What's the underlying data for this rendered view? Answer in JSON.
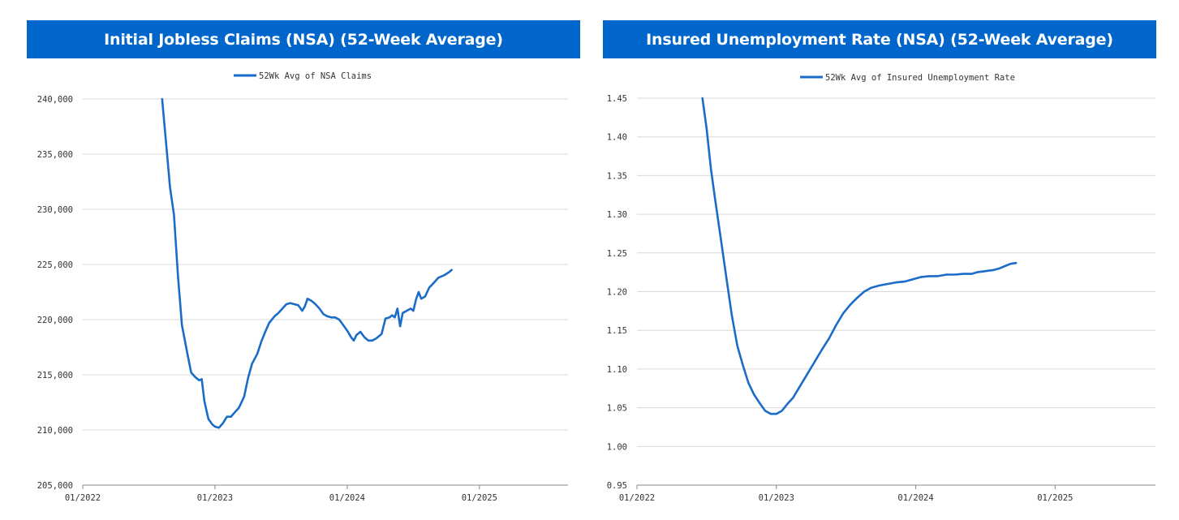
{
  "charts": [
    {
      "title": "Initial Jobless Claims (NSA) (52-Week Average)"
    },
    {
      "title": "Insured Unemployment Rate (NSA) (52-Week Average)"
    }
  ],
  "colors": {
    "banner": "#0066cc",
    "line": "#1a6cc8",
    "grid": "#d9d9d9",
    "axis": "#888888"
  },
  "chart_data": [
    {
      "type": "line",
      "title": "Initial Jobless Claims (NSA) (52-Week Average)",
      "xlabel": "",
      "ylabel": "",
      "legend_position": "top-center",
      "grid": true,
      "x_ticks": [
        "01/2022",
        "01/2023",
        "01/2024",
        "01/2025"
      ],
      "x_tick_values": [
        2022.0,
        2023.0,
        2024.0,
        2025.0
      ],
      "xlim": [
        2022.0,
        2025.67
      ],
      "y_ticks": [
        "205,000",
        "210,000",
        "215,000",
        "220,000",
        "225,000",
        "230,000",
        "235,000",
        "240,000"
      ],
      "y_tick_values": [
        205000,
        210000,
        215000,
        220000,
        225000,
        230000,
        235000,
        240000
      ],
      "ylim": [
        205000,
        240000
      ],
      "series": [
        {
          "name": "52Wk Avg of NSA Claims",
          "color": "#1a6cc8",
          "points": [
            [
              2022.6,
              240000
            ],
            [
              2022.63,
              236000
            ],
            [
              2022.66,
              232000
            ],
            [
              2022.69,
              229500
            ],
            [
              2022.72,
              224000
            ],
            [
              2022.75,
              219500
            ],
            [
              2022.79,
              217000
            ],
            [
              2022.82,
              215200
            ],
            [
              2022.85,
              214800
            ],
            [
              2022.88,
              214500
            ],
            [
              2022.9,
              214600
            ],
            [
              2022.92,
              212600
            ],
            [
              2022.95,
              211000
            ],
            [
              2022.98,
              210500
            ],
            [
              2023.0,
              210300
            ],
            [
              2023.03,
              210200
            ],
            [
              2023.06,
              210600
            ],
            [
              2023.09,
              211200
            ],
            [
              2023.12,
              211200
            ],
            [
              2023.15,
              211600
            ],
            [
              2023.18,
              212000
            ],
            [
              2023.22,
              213000
            ],
            [
              2023.25,
              214700
            ],
            [
              2023.28,
              216000
            ],
            [
              2023.32,
              216900
            ],
            [
              2023.35,
              218000
            ],
            [
              2023.38,
              218900
            ],
            [
              2023.41,
              219700
            ],
            [
              2023.45,
              220300
            ],
            [
              2023.48,
              220600
            ],
            [
              2023.51,
              221000
            ],
            [
              2023.54,
              221400
            ],
            [
              2023.57,
              221500
            ],
            [
              2023.6,
              221400
            ],
            [
              2023.63,
              221300
            ],
            [
              2023.66,
              220800
            ],
            [
              2023.68,
              221200
            ],
            [
              2023.7,
              221900
            ],
            [
              2023.73,
              221700
            ],
            [
              2023.76,
              221400
            ],
            [
              2023.79,
              221000
            ],
            [
              2023.82,
              220500
            ],
            [
              2023.85,
              220300
            ],
            [
              2023.88,
              220200
            ],
            [
              2023.91,
              220200
            ],
            [
              2023.94,
              220000
            ],
            [
              2023.97,
              219500
            ],
            [
              2024.0,
              219000
            ],
            [
              2024.03,
              218400
            ],
            [
              2024.05,
              218100
            ],
            [
              2024.07,
              218600
            ],
            [
              2024.1,
              218900
            ],
            [
              2024.13,
              218400
            ],
            [
              2024.16,
              218100
            ],
            [
              2024.19,
              218100
            ],
            [
              2024.22,
              218300
            ],
            [
              2024.26,
              218700
            ],
            [
              2024.29,
              220100
            ],
            [
              2024.32,
              220200
            ],
            [
              2024.34,
              220400
            ],
            [
              2024.36,
              220200
            ],
            [
              2024.38,
              221000
            ],
            [
              2024.4,
              219400
            ],
            [
              2024.42,
              220600
            ],
            [
              2024.45,
              220800
            ],
            [
              2024.48,
              221000
            ],
            [
              2024.5,
              220800
            ],
            [
              2024.52,
              221800
            ],
            [
              2024.54,
              222500
            ],
            [
              2024.56,
              221900
            ],
            [
              2024.59,
              222100
            ],
            [
              2024.62,
              222900
            ],
            [
              2024.66,
              223400
            ],
            [
              2024.69,
              223800
            ],
            [
              2024.73,
              224000
            ],
            [
              2024.77,
              224300
            ],
            [
              2024.79,
              224500
            ]
          ]
        }
      ]
    },
    {
      "type": "line",
      "title": "Insured Unemployment Rate (NSA) (52-Week Average)",
      "xlabel": "",
      "ylabel": "",
      "legend_position": "top-center",
      "grid": true,
      "x_ticks": [
        "01/2022",
        "01/2023",
        "01/2024",
        "01/2025"
      ],
      "x_tick_values": [
        2022.0,
        2023.0,
        2024.0,
        2025.0
      ],
      "xlim": [
        2022.0,
        2025.72
      ],
      "y_ticks": [
        "0.95",
        "1.00",
        "1.05",
        "1.10",
        "1.15",
        "1.20",
        "1.25",
        "1.30",
        "1.35",
        "1.40",
        "1.45"
      ],
      "y_tick_values": [
        0.95,
        1.0,
        1.05,
        1.1,
        1.15,
        1.2,
        1.25,
        1.3,
        1.35,
        1.4,
        1.45
      ],
      "ylim": [
        0.95,
        1.45
      ],
      "series": [
        {
          "name": "52Wk Avg of Insured Unemployment Rate",
          "color": "#1a6cc8",
          "points": [
            [
              2022.47,
              1.45
            ],
            [
              2022.5,
              1.41
            ],
            [
              2022.53,
              1.36
            ],
            [
              2022.56,
              1.32
            ],
            [
              2022.6,
              1.27
            ],
            [
              2022.64,
              1.22
            ],
            [
              2022.68,
              1.17
            ],
            [
              2022.72,
              1.13
            ],
            [
              2022.76,
              1.105
            ],
            [
              2022.8,
              1.082
            ],
            [
              2022.84,
              1.067
            ],
            [
              2022.88,
              1.056
            ],
            [
              2022.92,
              1.046
            ],
            [
              2022.96,
              1.042
            ],
            [
              2023.0,
              1.042
            ],
            [
              2023.04,
              1.046
            ],
            [
              2023.08,
              1.055
            ],
            [
              2023.12,
              1.063
            ],
            [
              2023.17,
              1.078
            ],
            [
              2023.22,
              1.093
            ],
            [
              2023.27,
              1.108
            ],
            [
              2023.32,
              1.123
            ],
            [
              2023.38,
              1.14
            ],
            [
              2023.43,
              1.157
            ],
            [
              2023.48,
              1.172
            ],
            [
              2023.53,
              1.183
            ],
            [
              2023.58,
              1.192
            ],
            [
              2023.63,
              1.2
            ],
            [
              2023.68,
              1.205
            ],
            [
              2023.74,
              1.208
            ],
            [
              2023.8,
              1.21
            ],
            [
              2023.86,
              1.212
            ],
            [
              2023.92,
              1.213
            ],
            [
              2023.98,
              1.216
            ],
            [
              2024.04,
              1.219
            ],
            [
              2024.1,
              1.22
            ],
            [
              2024.16,
              1.22
            ],
            [
              2024.22,
              1.222
            ],
            [
              2024.28,
              1.222
            ],
            [
              2024.34,
              1.223
            ],
            [
              2024.4,
              1.223
            ],
            [
              2024.44,
              1.225
            ],
            [
              2024.48,
              1.226
            ],
            [
              2024.52,
              1.227
            ],
            [
              2024.56,
              1.228
            ],
            [
              2024.6,
              1.23
            ],
            [
              2024.64,
              1.233
            ],
            [
              2024.68,
              1.236
            ],
            [
              2024.72,
              1.237
            ]
          ]
        }
      ]
    }
  ]
}
